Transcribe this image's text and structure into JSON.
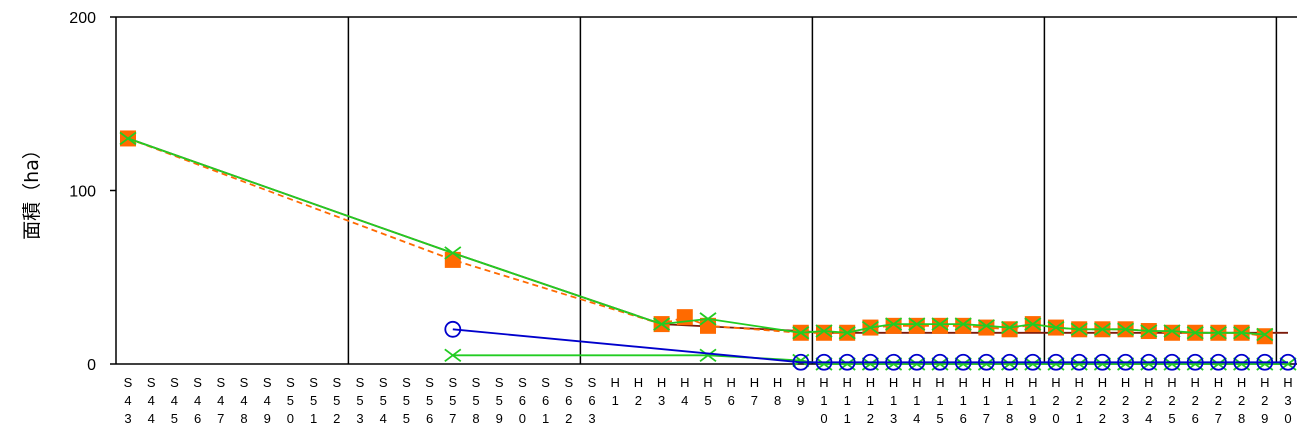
{
  "chart_data": {
    "type": "line",
    "ylabel": "面積（ha）",
    "xlabel": "",
    "title": "",
    "ylim": [
      0,
      200
    ],
    "yticks": [
      0,
      100,
      200
    ],
    "grid": "vertical",
    "legend": "none",
    "categories": [
      "S43",
      "S44",
      "S45",
      "S46",
      "S47",
      "S48",
      "S49",
      "S50",
      "S51",
      "S52",
      "S53",
      "S54",
      "S55",
      "S56",
      "S57",
      "S58",
      "S59",
      "S60",
      "S61",
      "S62",
      "S63",
      "H1",
      "H2",
      "H3",
      "H4",
      "H5",
      "H6",
      "H7",
      "H8",
      "H9",
      "H10",
      "H11",
      "H12",
      "H13",
      "H14",
      "H15",
      "H16",
      "H17",
      "H18",
      "H19",
      "H20",
      "H21",
      "H22",
      "H23",
      "H24",
      "H25",
      "H26",
      "H27",
      "H28",
      "H29",
      "H30"
    ],
    "vertical_gridlines_after": [
      "S52",
      "S62",
      "H9",
      "H19",
      "H29"
    ],
    "series": [
      {
        "color": "#7b1a0a",
        "line": "solid",
        "marker": "none",
        "points": [
          [
            "S43",
            130
          ],
          [
            "S57",
            64
          ],
          [
            "H3",
            23
          ],
          [
            "H9",
            19
          ],
          [
            "H10",
            18
          ],
          [
            "H30",
            18
          ]
        ]
      },
      {
        "color": "#ff6a00",
        "line": "dashed",
        "marker": "square",
        "points": [
          [
            "S43",
            130
          ],
          [
            "S57",
            60
          ],
          [
            "H3",
            23
          ],
          [
            "H4",
            27
          ],
          [
            "H5",
            22
          ],
          [
            "H9",
            18
          ],
          [
            "H10",
            18
          ],
          [
            "H11",
            18
          ],
          [
            "H12",
            21
          ],
          [
            "H13",
            22
          ],
          [
            "H14",
            22
          ],
          [
            "H15",
            22
          ],
          [
            "H16",
            22
          ],
          [
            "H17",
            21
          ],
          [
            "H18",
            20
          ],
          [
            "H19",
            23
          ],
          [
            "H20",
            21
          ],
          [
            "H21",
            20
          ],
          [
            "H22",
            20
          ],
          [
            "H23",
            20
          ],
          [
            "H24",
            19
          ],
          [
            "H25",
            18
          ],
          [
            "H26",
            18
          ],
          [
            "H27",
            18
          ],
          [
            "H28",
            18
          ],
          [
            "H29",
            16
          ]
        ]
      },
      {
        "color": "#22cc22",
        "line": "solid",
        "marker": "x",
        "points": [
          [
            "S43",
            130
          ],
          [
            "S57",
            64
          ],
          [
            "H3",
            23
          ],
          [
            "H5",
            26
          ],
          [
            "H9",
            18
          ],
          [
            "H10",
            19
          ],
          [
            "H11",
            18
          ],
          [
            "H12",
            21
          ],
          [
            "H13",
            23
          ],
          [
            "H14",
            23
          ],
          [
            "H15",
            23
          ],
          [
            "H16",
            23
          ],
          [
            "H17",
            22
          ],
          [
            "H18",
            21
          ],
          [
            "H19",
            23
          ],
          [
            "H20",
            21
          ],
          [
            "H21",
            20
          ],
          [
            "H22",
            20
          ],
          [
            "H23",
            20
          ],
          [
            "H24",
            19
          ],
          [
            "H25",
            19
          ],
          [
            "H26",
            18
          ],
          [
            "H27",
            18
          ],
          [
            "H28",
            18
          ],
          [
            "H29",
            17
          ]
        ]
      },
      {
        "color": "#22cc22",
        "line": "solid",
        "marker": "x",
        "points": [
          [
            "S57",
            5
          ],
          [
            "H5",
            5
          ],
          [
            "H9",
            2
          ],
          [
            "H10",
            0
          ],
          [
            "H11",
            0
          ],
          [
            "H12",
            0
          ],
          [
            "H13",
            0
          ],
          [
            "H14",
            0
          ],
          [
            "H15",
            0
          ],
          [
            "H16",
            0
          ],
          [
            "H17",
            0
          ],
          [
            "H18",
            0
          ],
          [
            "H19",
            0
          ],
          [
            "H20",
            0
          ],
          [
            "H21",
            0
          ],
          [
            "H22",
            0
          ],
          [
            "H23",
            0
          ],
          [
            "H24",
            0
          ],
          [
            "H25",
            0
          ],
          [
            "H26",
            0
          ],
          [
            "H27",
            0
          ],
          [
            "H28",
            0
          ],
          [
            "H29",
            0
          ],
          [
            "H30",
            0
          ]
        ]
      },
      {
        "color": "#0000cc",
        "line": "solid",
        "marker": "circle",
        "points": [
          [
            "S57",
            20
          ],
          [
            "H9",
            1
          ],
          [
            "H10",
            1
          ],
          [
            "H11",
            1
          ],
          [
            "H12",
            1
          ],
          [
            "H13",
            1
          ],
          [
            "H14",
            1
          ],
          [
            "H15",
            1
          ],
          [
            "H16",
            1
          ],
          [
            "H17",
            1
          ],
          [
            "H18",
            1
          ],
          [
            "H19",
            1
          ],
          [
            "H20",
            1
          ],
          [
            "H21",
            1
          ],
          [
            "H22",
            1
          ],
          [
            "H23",
            1
          ],
          [
            "H24",
            1
          ],
          [
            "H25",
            1
          ],
          [
            "H26",
            1
          ],
          [
            "H27",
            1
          ],
          [
            "H28",
            1
          ],
          [
            "H29",
            1
          ],
          [
            "H30",
            1
          ]
        ]
      }
    ]
  }
}
